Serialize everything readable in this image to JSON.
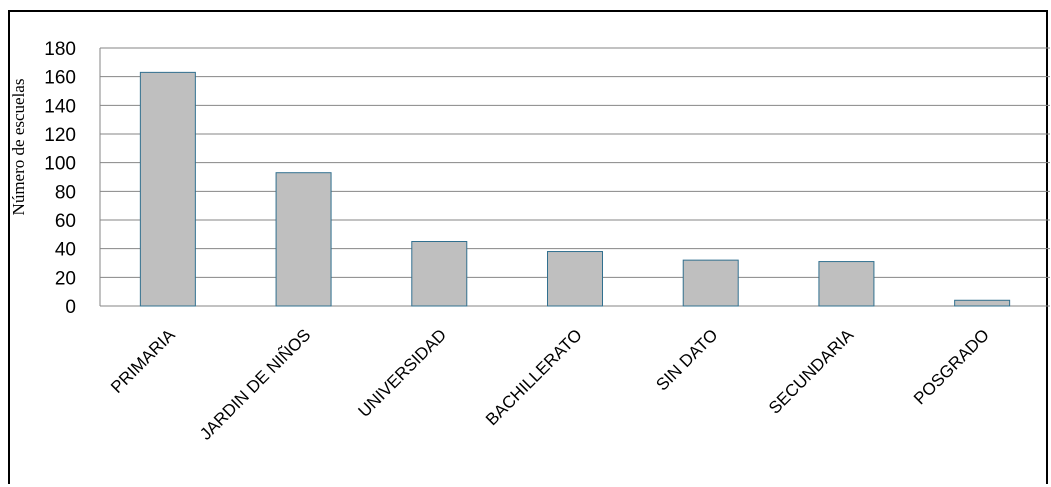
{
  "chart_data": {
    "type": "bar",
    "categories": [
      "PRIMARIA",
      "JARDIN DE NIÑOS",
      "UNIVERSIDAD",
      "BACHILLERATO",
      "SIN DATO",
      "SECUNDARIA",
      "POSGRADO"
    ],
    "values": [
      163,
      93,
      45,
      38,
      32,
      31,
      4
    ],
    "title": "",
    "xlabel": "",
    "ylabel": "Número de escuelas",
    "ylim": [
      0,
      180
    ],
    "yticks": [
      0,
      20,
      40,
      60,
      80,
      100,
      120,
      140,
      160,
      180
    ],
    "grid": true,
    "legend": "none",
    "colors": {
      "bar_fill": "#bfbfbf",
      "bar_stroke": "#31708f",
      "grid": "#868686",
      "axis": "#868686"
    }
  }
}
